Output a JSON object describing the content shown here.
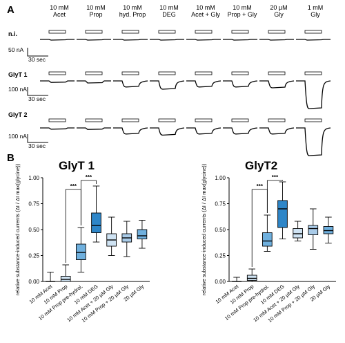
{
  "panel_a": {
    "letter": "A",
    "conditions": [
      "10 mM\nAcet",
      "10 mM\nProp",
      "10 mM\nhyd. Prop",
      "10 mM\nDEG",
      "10 mM\nAcet + Gly",
      "10 mM\nProp + Gly",
      "20 µM\nGly",
      "1 mM\nGly"
    ],
    "rows": [
      {
        "label": "n.i.",
        "scale_y": "50 nA",
        "scale_x": "30 sec",
        "depth": [
          0.05,
          0.05,
          0.05,
          0.05,
          0.05,
          0.05,
          0.05,
          0.05
        ]
      },
      {
        "label": "GlyT 1",
        "scale_y": "100 nA",
        "scale_x": "30 sec",
        "depth": [
          0.03,
          0.05,
          0.22,
          0.3,
          0.22,
          0.22,
          0.25,
          1.0
        ]
      },
      {
        "label": "GlyT 2",
        "scale_y": "100 nA",
        "scale_x": "30 sec",
        "depth": [
          0.02,
          0.03,
          0.22,
          0.26,
          0.22,
          0.22,
          0.22,
          1.0
        ]
      }
    ]
  },
  "panel_b": {
    "letter": "B"
  },
  "chart_data": [
    {
      "type": "box",
      "title": "GlyT 1",
      "ylabel": "relative substance-induced currents (ΔI / ΔI max(glycine))",
      "ylim": [
        0,
        1.0
      ],
      "yticks": [
        "0.00",
        "0.25",
        "0.50",
        "0.75",
        "1.00"
      ],
      "categories": [
        "10 mM Acet",
        "10 mM Prop",
        "10 mM Prop pre-hydrol.",
        "10 mM DEG",
        "10 mM Acet + 20 µM Gly",
        "10 mM Prop + 20 µM Gly",
        "20 µM Gly"
      ],
      "boxes": [
        {
          "min": 0.0,
          "q1": 0.0,
          "median": 0.0,
          "q3": 0.0,
          "max": 0.09,
          "fill": "#ffffff"
        },
        {
          "min": 0.0,
          "q1": 0.0,
          "median": 0.02,
          "q3": 0.05,
          "max": 0.16,
          "fill": "#cfe3f3"
        },
        {
          "min": 0.09,
          "q1": 0.21,
          "median": 0.28,
          "q3": 0.36,
          "max": 0.52,
          "fill": "#6fb0de"
        },
        {
          "min": 0.38,
          "q1": 0.47,
          "median": 0.54,
          "q3": 0.66,
          "max": 0.92,
          "fill": "#2e86c8"
        },
        {
          "min": 0.25,
          "q1": 0.34,
          "median": 0.4,
          "q3": 0.46,
          "max": 0.62,
          "fill": "#cfe3f3"
        },
        {
          "min": 0.24,
          "q1": 0.38,
          "median": 0.42,
          "q3": 0.46,
          "max": 0.58,
          "fill": "#a9cbe8"
        },
        {
          "min": 0.32,
          "q1": 0.41,
          "median": 0.44,
          "q3": 0.5,
          "max": 0.59,
          "fill": "#6fb0de"
        }
      ],
      "significance": [
        {
          "from": 1,
          "to": 2,
          "label": "***"
        },
        {
          "from": 2,
          "to": 3,
          "label": "***"
        }
      ]
    },
    {
      "type": "box",
      "title": "GlyT2",
      "ylabel": "relative substance-induced currents (ΔI / ΔI max(glycine))",
      "ylim": [
        0,
        1.0
      ],
      "yticks": [
        "0.00",
        "0.25",
        "0.50",
        "0.75",
        "1.00"
      ],
      "categories": [
        "10 mM Acet",
        "10 mM Prop",
        "10 mM Prop pre-hydrol.",
        "10 mM DEG",
        "10 mM Acet + 20 µM Gly",
        "10 mM Prop + 20 µM Gly",
        "20 µM Gly"
      ],
      "boxes": [
        {
          "min": 0.0,
          "q1": 0.0,
          "median": 0.0,
          "q3": 0.0,
          "max": 0.04,
          "fill": "#ffffff"
        },
        {
          "min": 0.0,
          "q1": 0.01,
          "median": 0.03,
          "q3": 0.06,
          "max": 0.12,
          "fill": "#cfe3f3"
        },
        {
          "min": 0.29,
          "q1": 0.34,
          "median": 0.39,
          "q3": 0.47,
          "max": 0.64,
          "fill": "#6fb0de"
        },
        {
          "min": 0.41,
          "q1": 0.52,
          "median": 0.7,
          "q3": 0.78,
          "max": 0.96,
          "fill": "#2e86c8"
        },
        {
          "min": 0.39,
          "q1": 0.42,
          "median": 0.46,
          "q3": 0.51,
          "max": 0.58,
          "fill": "#cfe3f3"
        },
        {
          "min": 0.31,
          "q1": 0.45,
          "median": 0.51,
          "q3": 0.54,
          "max": 0.7,
          "fill": "#a9cbe8"
        },
        {
          "min": 0.37,
          "q1": 0.46,
          "median": 0.49,
          "q3": 0.53,
          "max": 0.62,
          "fill": "#6fb0de"
        }
      ],
      "significance": [
        {
          "from": 1,
          "to": 2,
          "label": "***"
        },
        {
          "from": 2,
          "to": 3,
          "label": "***"
        }
      ]
    }
  ]
}
